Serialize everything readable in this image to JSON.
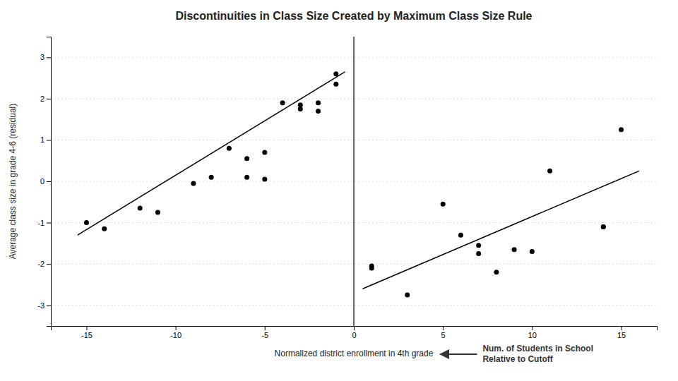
{
  "chart_data": {
    "type": "scatter",
    "title": "Discontinuities in Class Size Created by Maximum Class Size Rule",
    "xlabel": "Normalized district enrollment in 4th grade",
    "ylabel": "Average class size in grade 4-6 (residual)",
    "annotation": "Num. of Students in School\nRelative to Cutoff",
    "xlim": [
      -17,
      17
    ],
    "ylim": [
      -3.5,
      3.5
    ],
    "xticks": [
      -15,
      -10,
      -5,
      0,
      5,
      10,
      15
    ],
    "yticks": [
      -3,
      -2,
      -1,
      0,
      1,
      2,
      3
    ],
    "grid": true,
    "color": "#000000",
    "vline": 0,
    "series": [
      {
        "type": "scatter",
        "x": [
          -15,
          -14,
          -12,
          -11,
          -9,
          -8,
          -7,
          -6,
          -6,
          -5,
          -5,
          -4,
          -3,
          -3,
          -2,
          -2,
          -1,
          -1
        ],
        "values": [
          -1.0,
          -1.15,
          -0.65,
          -0.75,
          -0.05,
          0.1,
          0.8,
          0.55,
          0.1,
          0.7,
          0.05,
          1.9,
          1.75,
          1.85,
          1.7,
          1.9,
          2.6,
          2.35
        ]
      },
      {
        "type": "scatter",
        "x": [
          1,
          1,
          3,
          5,
          6,
          7,
          7,
          8,
          9,
          10,
          11,
          14,
          14,
          15
        ],
        "values": [
          -2.1,
          -2.05,
          -2.75,
          -0.55,
          -1.3,
          -1.55,
          -1.75,
          -2.2,
          -1.65,
          -1.7,
          0.25,
          -1.1,
          -1.1,
          1.25
        ]
      },
      {
        "type": "line",
        "x": [
          -15.5,
          -0.5
        ],
        "values": [
          -1.3,
          2.65
        ]
      },
      {
        "type": "line",
        "x": [
          0.5,
          16
        ],
        "values": [
          -2.6,
          0.25
        ]
      }
    ]
  }
}
